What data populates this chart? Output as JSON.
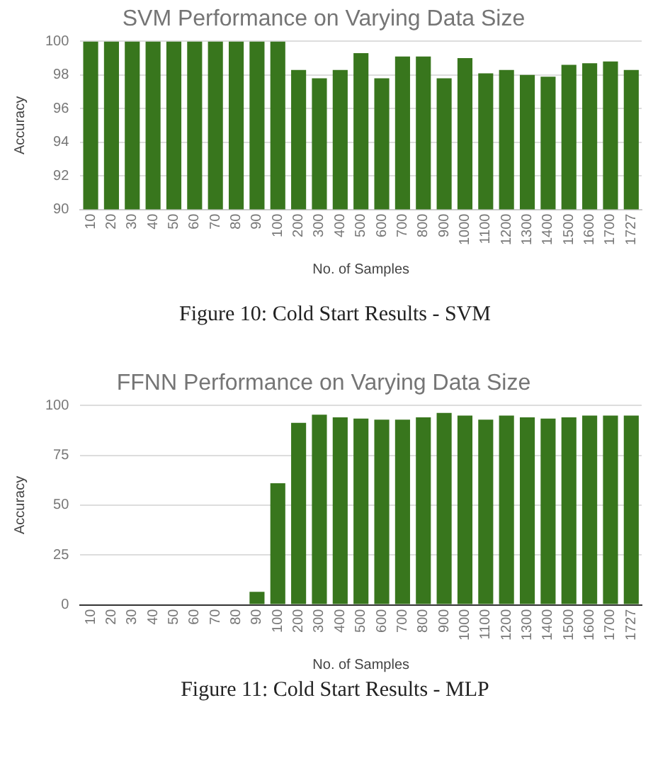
{
  "chart_data": [
    {
      "type": "bar",
      "title": "SVM Performance on Varying Data Size",
      "xlabel": "No. of Samples",
      "ylabel": "Accuracy",
      "categories": [
        "10",
        "20",
        "30",
        "40",
        "50",
        "60",
        "70",
        "80",
        "90",
        "100",
        "200",
        "300",
        "400",
        "500",
        "600",
        "700",
        "800",
        "900",
        "1000",
        "1100",
        "1200",
        "1300",
        "1400",
        "1500",
        "1600",
        "1700",
        "1727"
      ],
      "values": [
        100,
        100,
        100,
        100,
        100,
        100,
        100,
        100,
        100,
        100,
        98.3,
        97.8,
        98.3,
        99.3,
        97.8,
        99.1,
        99.1,
        97.8,
        99.0,
        98.1,
        98.3,
        98.0,
        97.9,
        98.6,
        98.7,
        98.8,
        98.3
      ],
      "color": "#38761d",
      "ylim": [
        90,
        100
      ],
      "yticks": [
        90,
        92,
        94,
        96,
        98,
        100
      ],
      "grid": "y",
      "annotations": [
        "Figure 10: Cold Start Results - SVM"
      ]
    },
    {
      "type": "bar",
      "title": "FFNN Performance on Varying Data Size",
      "xlabel": "No. of Samples",
      "ylabel": "Accuracy",
      "categories": [
        "10",
        "20",
        "30",
        "40",
        "50",
        "60",
        "70",
        "80",
        "90",
        "100",
        "200",
        "300",
        "400",
        "500",
        "600",
        "700",
        "800",
        "900",
        "1000",
        "1100",
        "1200",
        "1300",
        "1400",
        "1500",
        "1600",
        "1700",
        "1727"
      ],
      "values": [
        0,
        0,
        0,
        0,
        0,
        0,
        0,
        0,
        6.5,
        61,
        91.3,
        95.4,
        94.1,
        93.5,
        92.9,
        92.9,
        94.1,
        96.3,
        95,
        92.9,
        95,
        94.1,
        93.5,
        94.1,
        95,
        95,
        95
      ],
      "color": "#38761d",
      "ylim": [
        0,
        100
      ],
      "yticks": [
        0,
        25,
        50,
        75,
        100
      ],
      "grid": "y",
      "annotations": [
        "Figure 11: Cold Start Results - MLP"
      ]
    }
  ]
}
